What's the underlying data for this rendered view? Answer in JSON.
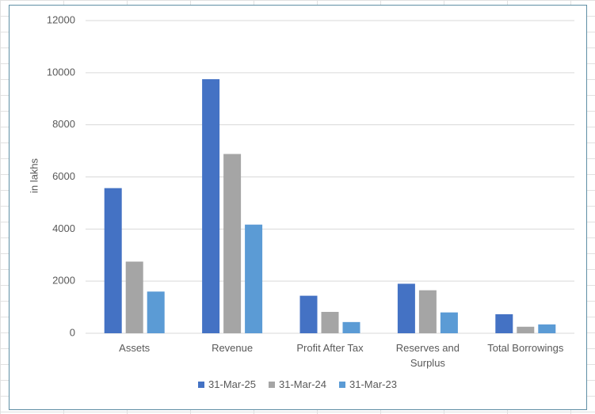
{
  "chart_data": {
    "type": "bar",
    "y_label": "in lakhs",
    "categories": [
      "Assets",
      "Revenue",
      "Profit After Tax",
      "Reserves and Surplus",
      "Total Borrowings"
    ],
    "series": [
      {
        "name": "31-Mar-25",
        "color": "#4472c4",
        "values": [
          5570,
          9750,
          1440,
          1900,
          730
        ]
      },
      {
        "name": "31-Mar-24",
        "color": "#a5a5a5",
        "values": [
          2750,
          6880,
          820,
          1650,
          250
        ]
      },
      {
        "name": "31-Mar-23",
        "color": "#5b9bd5",
        "values": [
          1600,
          4170,
          430,
          800,
          340
        ]
      }
    ],
    "ylim": [
      0,
      12000
    ],
    "yticks": [
      0,
      2000,
      4000,
      6000,
      8000,
      10000,
      12000
    ],
    "grid": true,
    "legend": "bottom"
  }
}
